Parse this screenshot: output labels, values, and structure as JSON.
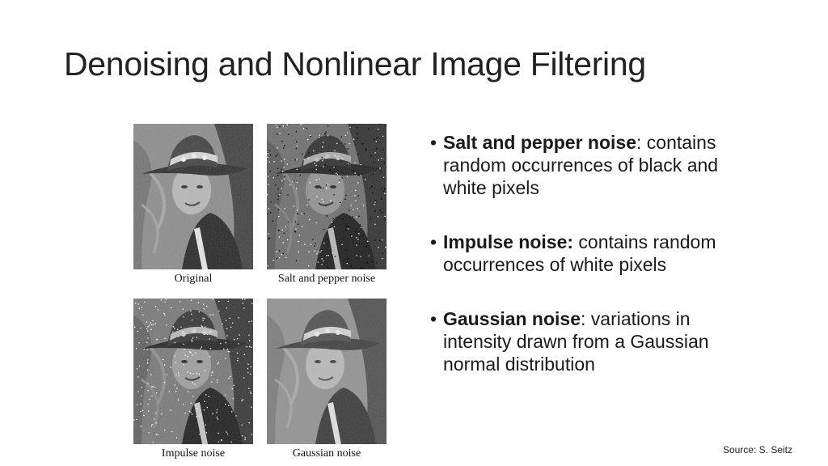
{
  "slide": {
    "title": "Denoising and Nonlinear Image Filtering",
    "source": "Source: S. Seitz"
  },
  "figures": [
    {
      "caption": "Original",
      "noise": "none"
    },
    {
      "caption": "Salt and pepper noise",
      "noise": "salt-pepper"
    },
    {
      "caption": "Impulse noise",
      "noise": "impulse"
    },
    {
      "caption": "Gaussian noise",
      "noise": "gaussian"
    }
  ],
  "bullets": [
    {
      "dot": "•",
      "term": "Salt and pepper noise",
      "sep": ":",
      "text": " contains random occurrences of black and white pixels"
    },
    {
      "dot": "•",
      "term": "Impulse noise:",
      "sep": "",
      "text": " contains random occurrences of white pixels"
    },
    {
      "dot": "•",
      "term": "Gaussian noise",
      "sep": ":",
      "text": " variations in intensity drawn from a Gaussian normal distribution"
    }
  ]
}
